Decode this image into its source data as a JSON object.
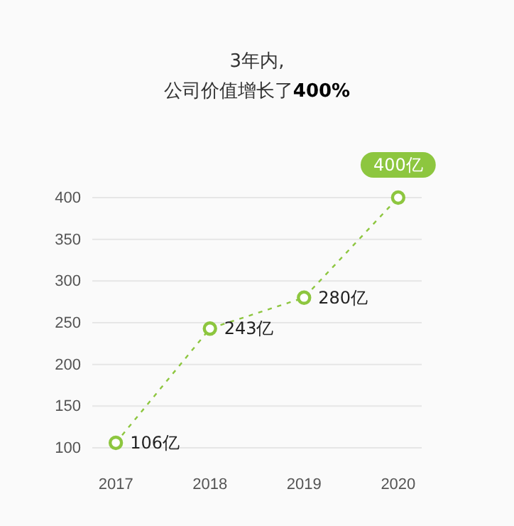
{
  "chart_data": {
    "type": "line",
    "title": "3年内,",
    "subtitle": "公司价值增长了400%",
    "categories": [
      "2017",
      "2018",
      "2019",
      "2020"
    ],
    "series": [
      {
        "color": "#8dc63f",
        "values": [
          106,
          243,
          280,
          400
        ],
        "value_labels": [
          "106亿",
          "243亿",
          "280亿",
          "400亿"
        ]
      }
    ],
    "ylim": [
      100,
      400
    ],
    "yticks": [
      100,
      150,
      200,
      250,
      300,
      350,
      400
    ],
    "grid": "y",
    "marker": "circle",
    "line_style": "dashed"
  }
}
